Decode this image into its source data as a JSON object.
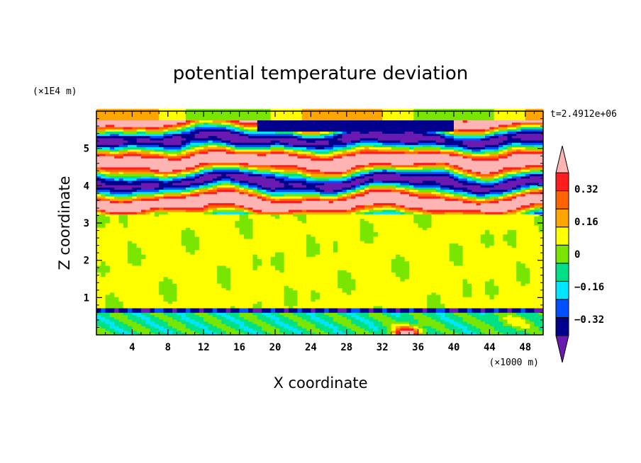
{
  "chart_data": {
    "type": "heatmap",
    "title": "potential temperature deviation",
    "xlabel": "X coordinate",
    "ylabel": "Z coordinate",
    "x_unit": "(×1000 m)",
    "y_unit": "(×1E4 m)",
    "time_label": "t=2.4912e+06",
    "xlim": [
      0,
      50
    ],
    "ylim": [
      0,
      6
    ],
    "x_ticks": [
      "4",
      "8",
      "12",
      "16",
      "20",
      "24",
      "28",
      "32",
      "36",
      "40",
      "44",
      "48"
    ],
    "y_ticks": [
      "1",
      "2",
      "3",
      "4",
      "5"
    ],
    "colorbar": {
      "levels": [
        -0.4,
        -0.32,
        -0.24,
        -0.16,
        -0.08,
        0,
        0.08,
        0.16,
        0.24,
        0.32,
        0.4
      ],
      "labels": [
        "0.32",
        "0.16",
        "0",
        "−0.16",
        "−0.32"
      ],
      "label_values": [
        0.32,
        0.16,
        0,
        -0.16,
        -0.32
      ],
      "colors": [
        "#6a1ab0",
        "#00008c",
        "#0050ff",
        "#00e6ff",
        "#00e187",
        "#78e600",
        "#ffff00",
        "#ffa500",
        "#ff6400",
        "#ff1e1e",
        "#ffb4b4"
      ],
      "extend": "both"
    }
  }
}
